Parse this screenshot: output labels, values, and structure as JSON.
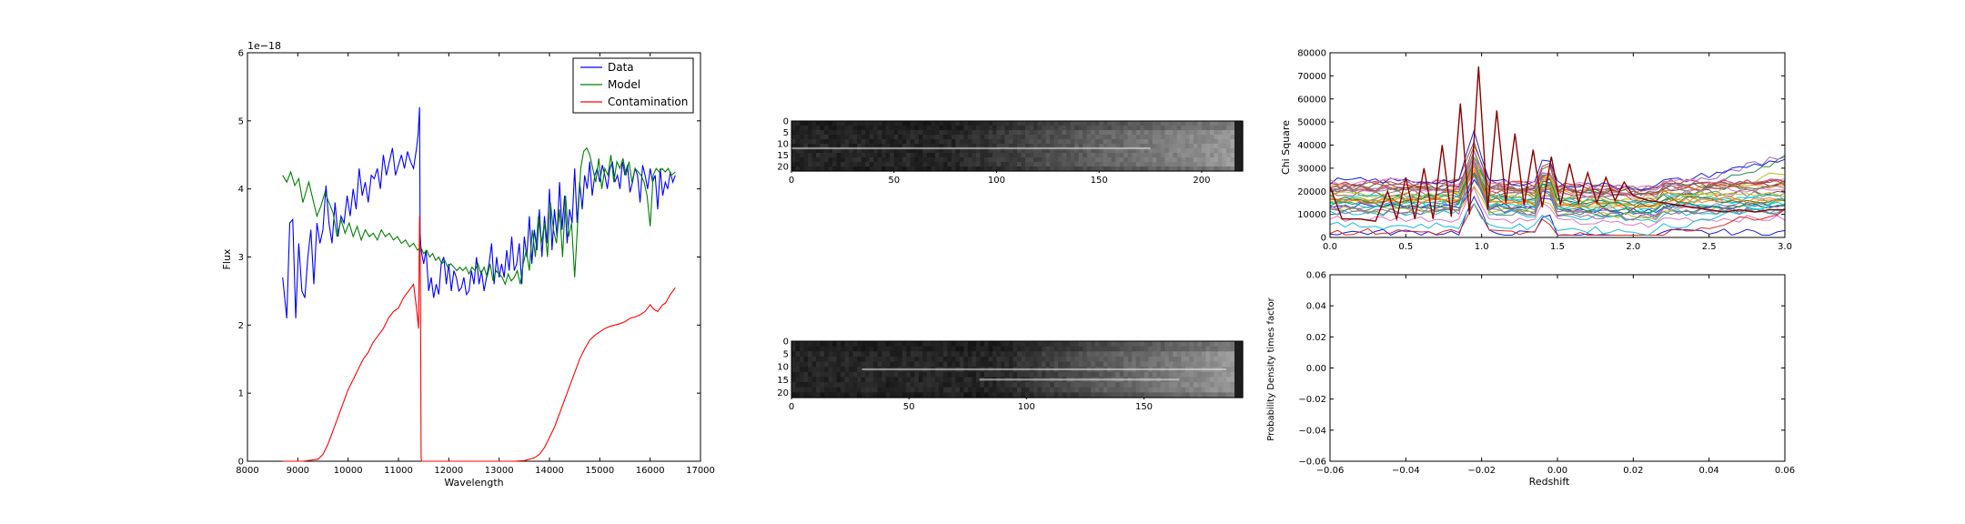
{
  "chart_data": [
    {
      "type": "line",
      "xlabel": "Wavelength",
      "ylabel": "Flux",
      "offset_text": "1e−18",
      "xlim": [
        8000,
        17000
      ],
      "ylim": [
        0,
        6
      ],
      "xticks": [
        "8000",
        "9000",
        "10000",
        "11000",
        "12000",
        "13000",
        "14000",
        "15000",
        "16000",
        "17000"
      ],
      "yticks": [
        "0",
        "1",
        "2",
        "3",
        "4",
        "5",
        "6"
      ],
      "legend_position": "upper-right",
      "series": [
        {
          "name": "Data",
          "color": "#0000ff",
          "x": [
            8700,
            8780,
            8840,
            8900,
            8960,
            9020,
            9080,
            9140,
            9200,
            9260,
            9320,
            9380,
            9440,
            9500,
            9560,
            9620,
            9680,
            9740,
            9800,
            9860,
            9920,
            9980,
            10040,
            10100,
            10160,
            10220,
            10280,
            10340,
            10400,
            10460,
            10520,
            10580,
            10640,
            10700,
            10760,
            10820,
            10880,
            10940,
            11000,
            11060,
            11120,
            11180,
            11240,
            11300,
            11360,
            11390,
            11420,
            11430,
            11450,
            11500,
            11550,
            11600,
            11650,
            11700,
            11750,
            11800,
            11850,
            11900,
            11950,
            12000,
            12050,
            12100,
            12150,
            12200,
            12250,
            12300,
            12350,
            12400,
            12450,
            12500,
            12550,
            12600,
            12650,
            12700,
            12750,
            12800,
            12850,
            12900,
            12950,
            13000,
            13050,
            13100,
            13150,
            13200,
            13250,
            13300,
            13350,
            13400,
            13450,
            13500,
            13550,
            13600,
            13650,
            13700,
            13750,
            13800,
            13850,
            13900,
            13950,
            14000,
            14050,
            14100,
            14150,
            14200,
            14250,
            14300,
            14350,
            14400,
            14450,
            14500,
            14550,
            14600,
            14650,
            14700,
            14750,
            14800,
            14850,
            14900,
            14950,
            15000,
            15050,
            15100,
            15150,
            15200,
            15250,
            15300,
            15350,
            15400,
            15450,
            15500,
            15550,
            15600,
            15650,
            15700,
            15750,
            15800,
            15850,
            15900,
            15950,
            16000,
            16050,
            16100,
            16150,
            16200,
            16250,
            16300,
            16350,
            16400,
            16450,
            16500
          ],
          "y": [
            2.7,
            2.1,
            3.5,
            3.55,
            2.1,
            3.2,
            2.5,
            2.4,
            3.0,
            3.4,
            2.6,
            3.5,
            3.2,
            3.4,
            4.05,
            3.5,
            3.2,
            3.8,
            3.3,
            3.6,
            3.5,
            3.9,
            3.6,
            4.0,
            3.7,
            4.3,
            3.9,
            4.1,
            3.8,
            4.2,
            4.15,
            4.3,
            4.0,
            4.5,
            4.2,
            4.4,
            4.6,
            4.2,
            4.35,
            4.5,
            4.3,
            4.55,
            4.4,
            4.3,
            4.6,
            4.8,
            5.2,
            3.35,
            3.1,
            2.9,
            3.1,
            2.5,
            2.7,
            2.4,
            2.6,
            2.45,
            2.9,
            3.0,
            2.6,
            2.9,
            2.5,
            2.8,
            2.7,
            2.5,
            2.55,
            2.7,
            2.45,
            2.5,
            2.8,
            2.6,
            3.0,
            2.6,
            2.8,
            2.5,
            2.7,
            2.9,
            3.2,
            2.6,
            3.0,
            2.7,
            2.9,
            2.7,
            3.1,
            2.8,
            3.3,
            2.8,
            2.9,
            3.2,
            2.6,
            3.3,
            3.0,
            3.6,
            2.9,
            3.4,
            3.1,
            3.7,
            3.0,
            3.6,
            3.2,
            4.0,
            3.1,
            3.7,
            3.3,
            4.1,
            3.4,
            3.9,
            3.2,
            3.7,
            3.5,
            4.3,
            3.5,
            4.1,
            3.7,
            4.2,
            4.0,
            4.4,
            3.9,
            4.2,
            4.3,
            4.1,
            4.35,
            4.2,
            4.0,
            4.3,
            4.4,
            4.1,
            4.2,
            4.0,
            4.4,
            4.2,
            4.35,
            3.95,
            4.1,
            4.3,
            4.2,
            3.8,
            4.35,
            4.2,
            4.0,
            4.3,
            4.1,
            4.2,
            3.7,
            4.3,
            3.9,
            4.1,
            4.0,
            4.25,
            4.1,
            4.2
          ]
        },
        {
          "name": "Model",
          "color": "#008000",
          "x": [
            8700,
            8780,
            8860,
            8940,
            9020,
            9100,
            9160,
            9220,
            9300,
            9380,
            9460,
            9540,
            9620,
            9700,
            9780,
            9860,
            9940,
            10020,
            10100,
            10180,
            10260,
            10340,
            10420,
            10500,
            10580,
            10660,
            10740,
            10820,
            10900,
            10980,
            11060,
            11140,
            11220,
            11300,
            11380,
            11440,
            11500,
            11560,
            11620,
            11680,
            11740,
            11800,
            11860,
            11920,
            11980,
            12040,
            12100,
            12160,
            12220,
            12280,
            12340,
            12400,
            12460,
            12520,
            12580,
            12640,
            12700,
            12760,
            12820,
            12880,
            12940,
            13000,
            13060,
            13120,
            13180,
            13240,
            13300,
            13360,
            13420,
            13480,
            13540,
            13600,
            13660,
            13720,
            13780,
            13840,
            13900,
            13960,
            14020,
            14080,
            14140,
            14200,
            14260,
            14320,
            14380,
            14440,
            14500,
            14560,
            14620,
            14680,
            14740,
            14800,
            14860,
            14920,
            14980,
            15040,
            15100,
            15160,
            15220,
            15280,
            15340,
            15400,
            15460,
            15520,
            15580,
            15640,
            15700,
            15760,
            15820,
            15880,
            15940,
            16000,
            16060,
            16120,
            16180,
            16240,
            16300,
            16360,
            16420,
            16500
          ],
          "y": [
            4.2,
            4.1,
            4.25,
            4.05,
            4.15,
            3.8,
            3.95,
            4.1,
            3.85,
            3.6,
            3.75,
            3.95,
            3.8,
            3.65,
            3.3,
            3.55,
            3.35,
            3.5,
            3.3,
            3.45,
            3.25,
            3.4,
            3.3,
            3.35,
            3.25,
            3.4,
            3.3,
            3.35,
            3.25,
            3.3,
            3.2,
            3.25,
            3.15,
            3.2,
            3.1,
            3.15,
            3.05,
            3.1,
            3.0,
            3.05,
            2.95,
            3.0,
            2.9,
            2.95,
            2.85,
            2.9,
            2.85,
            2.8,
            2.85,
            2.8,
            2.85,
            2.75,
            2.85,
            2.8,
            2.9,
            2.75,
            2.85,
            2.7,
            2.9,
            2.65,
            2.8,
            2.75,
            2.7,
            2.6,
            2.75,
            2.65,
            2.7,
            2.8,
            2.6,
            2.9,
            3.1,
            2.8,
            3.4,
            3.0,
            3.6,
            3.2,
            3.5,
            3.0,
            3.8,
            3.4,
            3.2,
            3.7,
            3.0,
            3.9,
            3.3,
            3.5,
            2.7,
            3.5,
            4.3,
            4.55,
            4.6,
            4.5,
            4.3,
            4.1,
            4.45,
            4.0,
            4.3,
            4.2,
            4.5,
            4.1,
            4.4,
            4.3,
            4.45,
            4.2,
            4.4,
            4.1,
            4.3,
            4.25,
            4.2,
            4.1,
            3.9,
            3.45,
            4.2,
            4.3,
            4.25,
            4.3,
            4.25,
            4.3,
            4.2,
            4.25
          ]
        },
        {
          "name": "Contamination",
          "color": "#ff0000",
          "x": [
            8700,
            8900,
            9100,
            9300,
            9400,
            9500,
            9600,
            9700,
            9800,
            9900,
            10000,
            10100,
            10200,
            10300,
            10400,
            10500,
            10600,
            10700,
            10800,
            10900,
            11000,
            11100,
            11200,
            11300,
            11350,
            11380,
            11400,
            11420,
            11430,
            11440,
            11450,
            11460,
            11480,
            11500,
            11700,
            12000,
            12500,
            13000,
            13300,
            13500,
            13700,
            13800,
            13900,
            14000,
            14100,
            14200,
            14300,
            14400,
            14500,
            14600,
            14700,
            14800,
            14900,
            15000,
            15100,
            15200,
            15300,
            15400,
            15500,
            15600,
            15700,
            15800,
            15900,
            16000,
            16050,
            16100,
            16150,
            16200,
            16250,
            16300,
            16350,
            16400,
            16450,
            16500
          ],
          "y": [
            0.0,
            0.0,
            0.0,
            0.02,
            0.03,
            0.1,
            0.25,
            0.45,
            0.65,
            0.85,
            1.05,
            1.2,
            1.35,
            1.5,
            1.6,
            1.75,
            1.85,
            1.95,
            2.1,
            2.2,
            2.25,
            2.4,
            2.5,
            2.6,
            2.3,
            2.1,
            1.95,
            3.6,
            3.1,
            2.2,
            0.05,
            0.0,
            0.0,
            0.0,
            0.0,
            0.0,
            0.0,
            0.0,
            0.0,
            0.01,
            0.05,
            0.1,
            0.2,
            0.35,
            0.5,
            0.7,
            0.9,
            1.1,
            1.3,
            1.5,
            1.65,
            1.78,
            1.85,
            1.9,
            1.95,
            1.98,
            2.0,
            2.02,
            2.05,
            2.1,
            2.12,
            2.15,
            2.2,
            2.3,
            2.25,
            2.22,
            2.2,
            2.25,
            2.3,
            2.32,
            2.38,
            2.45,
            2.5,
            2.55
          ]
        }
      ]
    },
    {
      "type": "heatmap",
      "xlim": [
        0,
        220
      ],
      "ylim": [
        22,
        0
      ],
      "xticks": [
        "0",
        "50",
        "100",
        "150",
        "200"
      ],
      "yticks": [
        "0",
        "5",
        "10",
        "15",
        "20"
      ],
      "colormap": "gray",
      "traces": [
        {
          "row": 12,
          "x_from": 0,
          "x_to": 175
        }
      ]
    },
    {
      "type": "heatmap",
      "xlim": [
        0,
        192
      ],
      "ylim": [
        22,
        0
      ],
      "xticks": [
        "0",
        "50",
        "100",
        "150"
      ],
      "yticks": [
        "0",
        "5",
        "10",
        "15",
        "20"
      ],
      "colormap": "gray",
      "traces": [
        {
          "row": 11,
          "x_from": 30,
          "x_to": 185
        },
        {
          "row": 15,
          "x_from": 80,
          "x_to": 165
        }
      ]
    },
    {
      "type": "line",
      "ylabel": "Chi Square",
      "xlim": [
        0,
        3
      ],
      "ylim": [
        0,
        80000
      ],
      "xticks": [
        "0.0",
        "0.5",
        "1.0",
        "1.5",
        "2.0",
        "2.5",
        "3.0"
      ],
      "yticks": [
        "0",
        "10000",
        "20000",
        "30000",
        "40000",
        "50000",
        "60000",
        "70000",
        "80000"
      ],
      "peaked_series": {
        "color": "#8b0000",
        "x": [
          0.0,
          0.08,
          0.2,
          0.3,
          0.38,
          0.44,
          0.5,
          0.56,
          0.62,
          0.68,
          0.74,
          0.8,
          0.86,
          0.92,
          0.98,
          1.04,
          1.1,
          1.16,
          1.22,
          1.28,
          1.34,
          1.4,
          1.46,
          1.52,
          1.58,
          1.64,
          1.7,
          1.76,
          1.82,
          1.88,
          1.94,
          2.0,
          2.1,
          2.2,
          2.3,
          2.4,
          2.5,
          2.6,
          2.7,
          2.8,
          2.9,
          3.0
        ],
        "y": [
          22000,
          8000,
          8000,
          7000,
          20000,
          8000,
          26000,
          8000,
          30000,
          8000,
          40000,
          9000,
          58000,
          10000,
          74000,
          12000,
          55000,
          15000,
          45000,
          14000,
          38000,
          13000,
          35000,
          14000,
          32000,
          15000,
          28000,
          15000,
          26000,
          16000,
          24000,
          18000,
          16000,
          15000,
          14000,
          13000,
          12000,
          11000,
          12000,
          11000,
          12000,
          12000
        ]
      }
    },
    {
      "type": "line",
      "xlabel": "Redshift",
      "ylabel": "Probability Density times factor",
      "xlim": [
        -0.06,
        0.06
      ],
      "ylim": [
        -0.06,
        0.06
      ],
      "xticks": [
        "−0.06",
        "−0.04",
        "−0.02",
        "0.00",
        "0.02",
        "0.04",
        "0.06"
      ],
      "yticks": [
        "−0.06",
        "−0.04",
        "−0.02",
        "0.00",
        "0.02",
        "0.04",
        "0.06"
      ],
      "series": []
    }
  ]
}
